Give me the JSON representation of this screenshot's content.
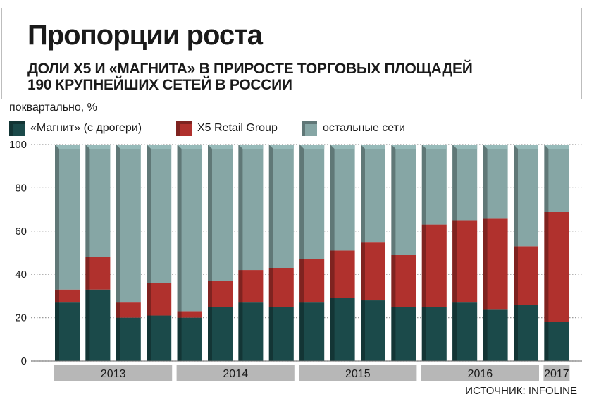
{
  "title": "Пропорции роста",
  "subtitle_lines": [
    "ДОЛИ X5 И «МАГНИТА» В ПРИРОСТЕ ТОРГОВЫХ ПЛОЩАДЕЙ",
    "190 КРУПНЕЙШИХ СЕТЕЙ В РОССИИ"
  ],
  "colors": {
    "magnit": "#1b4a4a",
    "x5": "#b0312d",
    "other": "#86a6a5",
    "year_bar": "#b7b7b7"
  },
  "legend": [
    {
      "key": "magnit",
      "label": "«Магнит» (с дрогери)"
    },
    {
      "key": "x5",
      "label": "X5 Retail Group"
    },
    {
      "key": "other",
      "label": "остальные сети"
    }
  ],
  "source": "ИСТОЧНИК: INFOLINE",
  "chart_data": {
    "type": "bar",
    "stacked": true,
    "ylabel": "поквартально, %",
    "ylim": [
      0,
      100
    ],
    "yticks": [
      0,
      20,
      40,
      60,
      80,
      100
    ],
    "grid": "dotted",
    "years": [
      {
        "label": "2013",
        "quarters": 4
      },
      {
        "label": "2014",
        "quarters": 4
      },
      {
        "label": "2015",
        "quarters": 4
      },
      {
        "label": "2016",
        "quarters": 4
      },
      {
        "label": "2017",
        "quarters": 1
      }
    ],
    "series": [
      {
        "name": "«Магнит» (с дрогери)",
        "key": "magnit",
        "values": [
          27,
          33,
          20,
          21,
          20,
          25,
          27,
          25,
          27,
          29,
          28,
          25,
          25,
          27,
          24,
          26,
          18
        ]
      },
      {
        "name": "X5 Retail Group",
        "key": "x5",
        "values": [
          6,
          15,
          7,
          15,
          3,
          12,
          15,
          18,
          20,
          22,
          27,
          24,
          38,
          38,
          42,
          27,
          51
        ]
      },
      {
        "name": "остальные сети",
        "key": "other",
        "values": [
          67,
          52,
          73,
          64,
          77,
          63,
          58,
          57,
          53,
          49,
          45,
          51,
          37,
          35,
          34,
          47,
          31
        ]
      }
    ]
  }
}
